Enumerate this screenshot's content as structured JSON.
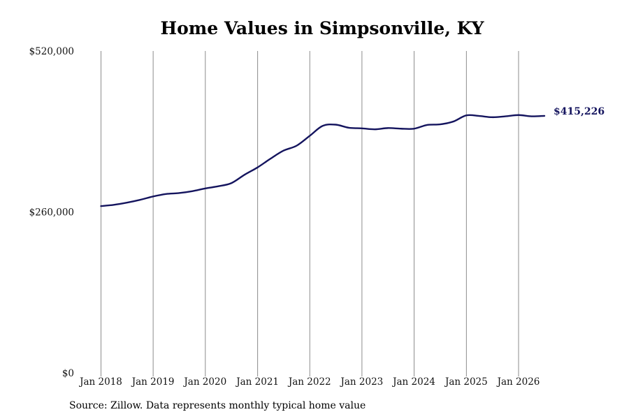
{
  "page": {
    "title": "Home Values in Simpsonville, KY",
    "source": "Source: Zillow. Data represents monthly typical home value"
  },
  "colors": {
    "line": "#14145e",
    "gridline": "#8c8c8c",
    "background": "#ffffff"
  },
  "chart_data": {
    "type": "line",
    "title": "Home Values in Simpsonville, KY",
    "xlabel": "",
    "ylabel": "",
    "ylim": [
      0,
      520000
    ],
    "xlim": [
      "2018-01-01",
      "2026-07-01"
    ],
    "y_ticks": [
      {
        "value": 0,
        "label": "$0"
      },
      {
        "value": 260000,
        "label": "$260,000"
      },
      {
        "value": 520000,
        "label": "$520,000"
      }
    ],
    "x_ticks": [
      {
        "value": "2018-01-01",
        "label": "Jan 2018"
      },
      {
        "value": "2019-01-01",
        "label": "Jan 2019"
      },
      {
        "value": "2020-01-01",
        "label": "Jan 2020"
      },
      {
        "value": "2021-01-01",
        "label": "Jan 2021"
      },
      {
        "value": "2022-01-01",
        "label": "Jan 2022"
      },
      {
        "value": "2023-01-01",
        "label": "Jan 2023"
      },
      {
        "value": "2024-01-01",
        "label": "Jan 2024"
      },
      {
        "value": "2025-01-01",
        "label": "Jan 2025"
      },
      {
        "value": "2026-01-01",
        "label": "Jan 2026"
      }
    ],
    "grid": "vertical lines at year ticks",
    "end_label": "$415,226",
    "series": [
      {
        "color": "#14145e",
        "points": [
          {
            "x": "2018-01-01",
            "y": 269500
          },
          {
            "x": "2018-04-01",
            "y": 271500
          },
          {
            "x": "2018-07-01",
            "y": 275000
          },
          {
            "x": "2018-10-01",
            "y": 279500
          },
          {
            "x": "2019-01-01",
            "y": 285000
          },
          {
            "x": "2019-04-01",
            "y": 289000
          },
          {
            "x": "2019-07-01",
            "y": 290500
          },
          {
            "x": "2019-10-01",
            "y": 293500
          },
          {
            "x": "2020-01-01",
            "y": 298000
          },
          {
            "x": "2020-04-01",
            "y": 301500
          },
          {
            "x": "2020-07-01",
            "y": 306500
          },
          {
            "x": "2020-10-01",
            "y": 320000
          },
          {
            "x": "2021-01-01",
            "y": 332000
          },
          {
            "x": "2021-04-01",
            "y": 346000
          },
          {
            "x": "2021-07-01",
            "y": 359000
          },
          {
            "x": "2021-10-01",
            "y": 367000
          },
          {
            "x": "2022-01-01",
            "y": 383000
          },
          {
            "x": "2022-04-01",
            "y": 399000
          },
          {
            "x": "2022-07-01",
            "y": 401000
          },
          {
            "x": "2022-10-01",
            "y": 396000
          },
          {
            "x": "2023-01-01",
            "y": 395000
          },
          {
            "x": "2023-04-01",
            "y": 393500
          },
          {
            "x": "2023-07-01",
            "y": 395500
          },
          {
            "x": "2023-10-01",
            "y": 394500
          },
          {
            "x": "2024-01-01",
            "y": 394500
          },
          {
            "x": "2024-04-01",
            "y": 400500
          },
          {
            "x": "2024-07-01",
            "y": 401500
          },
          {
            "x": "2024-10-01",
            "y": 406000
          },
          {
            "x": "2025-01-01",
            "y": 416000
          },
          {
            "x": "2025-04-01",
            "y": 415000
          },
          {
            "x": "2025-07-01",
            "y": 413000
          },
          {
            "x": "2025-10-01",
            "y": 414500
          },
          {
            "x": "2026-01-01",
            "y": 416500
          },
          {
            "x": "2026-04-01",
            "y": 414500
          },
          {
            "x": "2026-07-01",
            "y": 415226
          }
        ]
      }
    ]
  }
}
